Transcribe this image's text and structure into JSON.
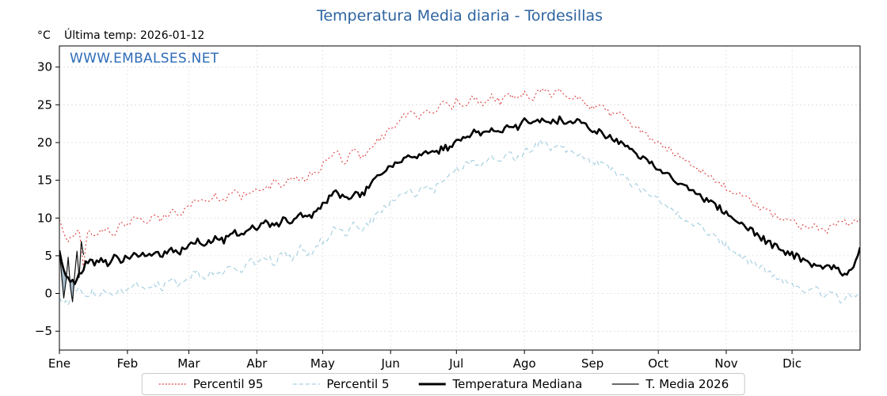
{
  "header": {
    "title": "Temperatura Media diaria - Tordesillas",
    "unit_label": "°C",
    "last_temp_label": "Última temp: 2026-01-12",
    "watermark": "WWW.EMBALSES.NET"
  },
  "colors": {
    "title": "#2e64a0",
    "watermark": "#2e6cb8",
    "percentil95": "#dd3c3c",
    "percentil5": "#a9d1e2",
    "mediana": "#000000",
    "media2026": "#111111",
    "fill": "#628aa8"
  },
  "chart_data": {
    "type": "line",
    "title": "Temperatura Media diaria - Tordesillas",
    "ylabel": "°C",
    "grid": true,
    "x_axis": {
      "months": [
        "Ene",
        "Feb",
        "Mar",
        "Abr",
        "May",
        "Jun",
        "Jul",
        "Ago",
        "Sep",
        "Oct",
        "Nov",
        "Dic"
      ],
      "month_start_days": [
        0,
        31,
        59,
        90,
        120,
        151,
        181,
        212,
        243,
        273,
        304,
        334
      ],
      "total_days": 365
    },
    "y_axis": {
      "ticks": [
        -5,
        0,
        5,
        10,
        15,
        20,
        25,
        30
      ],
      "lim": [
        -7.5,
        32.8
      ],
      "unit": "°C"
    },
    "legend": {
      "position": "bottom",
      "entries": [
        "Percentil 95",
        "Percentil 5",
        "Temperatura Mediana",
        "T. Media 2026"
      ]
    },
    "fill_between": {
      "upper": "Temperatura Mediana",
      "lower": "T. Media 2026",
      "color": "#628aa8",
      "opacity": 0.55,
      "range_days": [
        0,
        11
      ]
    },
    "series": [
      {
        "name": "Percentil 95",
        "color": "#dd3c3c",
        "style": "dotted",
        "width": 1.1,
        "noise": 0.45,
        "anchors": [
          [
            0,
            9.5
          ],
          [
            3,
            7.0
          ],
          [
            6,
            7.8
          ],
          [
            9,
            8.2
          ],
          [
            11,
            3.6
          ],
          [
            13,
            8.3
          ],
          [
            17,
            7.8
          ],
          [
            21,
            8.6
          ],
          [
            25,
            7.9
          ],
          [
            28,
            9.2
          ],
          [
            31,
            8.8
          ],
          [
            35,
            10.3
          ],
          [
            39,
            9.6
          ],
          [
            43,
            10.2
          ],
          [
            47,
            9.8
          ],
          [
            51,
            11.0
          ],
          [
            55,
            10.4
          ],
          [
            59,
            11.6
          ],
          [
            63,
            12.6
          ],
          [
            67,
            12.0
          ],
          [
            71,
            13.0
          ],
          [
            75,
            12.4
          ],
          [
            79,
            13.6
          ],
          [
            83,
            12.8
          ],
          [
            87,
            13.6
          ],
          [
            90,
            14.2
          ],
          [
            94,
            13.6
          ],
          [
            98,
            14.8
          ],
          [
            102,
            14.2
          ],
          [
            106,
            15.4
          ],
          [
            110,
            14.8
          ],
          [
            114,
            15.6
          ],
          [
            118,
            16.2
          ],
          [
            122,
            17.6
          ],
          [
            126,
            18.8
          ],
          [
            130,
            17.4
          ],
          [
            134,
            19.0
          ],
          [
            138,
            18.0
          ],
          [
            142,
            19.6
          ],
          [
            146,
            20.4
          ],
          [
            151,
            21.8
          ],
          [
            155,
            22.8
          ],
          [
            159,
            24.0
          ],
          [
            163,
            23.2
          ],
          [
            167,
            24.6
          ],
          [
            171,
            24.0
          ],
          [
            175,
            25.2
          ],
          [
            179,
            24.6
          ],
          [
            181,
            25.6
          ],
          [
            185,
            25.0
          ],
          [
            189,
            26.0
          ],
          [
            193,
            25.2
          ],
          [
            197,
            26.2
          ],
          [
            201,
            25.4
          ],
          [
            205,
            26.4
          ],
          [
            209,
            25.6
          ],
          [
            212,
            26.6
          ],
          [
            216,
            26.0
          ],
          [
            220,
            27.4
          ],
          [
            224,
            26.4
          ],
          [
            228,
            26.8
          ],
          [
            232,
            25.8
          ],
          [
            236,
            26.0
          ],
          [
            240,
            25.2
          ],
          [
            243,
            24.6
          ],
          [
            247,
            25.0
          ],
          [
            251,
            23.8
          ],
          [
            255,
            24.2
          ],
          [
            259,
            22.8
          ],
          [
            263,
            22.0
          ],
          [
            267,
            21.2
          ],
          [
            273,
            19.8
          ],
          [
            278,
            19.0
          ],
          [
            283,
            18.2
          ],
          [
            288,
            17.2
          ],
          [
            293,
            16.2
          ],
          [
            298,
            15.2
          ],
          [
            304,
            14.0
          ],
          [
            309,
            13.2
          ],
          [
            314,
            12.4
          ],
          [
            319,
            11.4
          ],
          [
            324,
            10.6
          ],
          [
            329,
            10.0
          ],
          [
            334,
            9.6
          ],
          [
            339,
            8.8
          ],
          [
            344,
            9.2
          ],
          [
            349,
            8.2
          ],
          [
            353,
            9.0
          ],
          [
            357,
            9.6
          ],
          [
            361,
            9.0
          ],
          [
            365,
            9.8
          ]
        ]
      },
      {
        "name": "Percentil 5",
        "color": "#a9d1e2",
        "style": "dashed",
        "width": 1.2,
        "noise": 0.5,
        "anchors": [
          [
            0,
            -0.4
          ],
          [
            3,
            -1.3
          ],
          [
            6,
            -0.6
          ],
          [
            9,
            0.6
          ],
          [
            12,
            -0.8
          ],
          [
            15,
            0.2
          ],
          [
            18,
            -0.6
          ],
          [
            21,
            0.4
          ],
          [
            24,
            -0.4
          ],
          [
            27,
            0.6
          ],
          [
            31,
            0.2
          ],
          [
            35,
            1.2
          ],
          [
            39,
            0.4
          ],
          [
            43,
            1.4
          ],
          [
            47,
            0.8
          ],
          [
            51,
            1.8
          ],
          [
            55,
            1.2
          ],
          [
            59,
            2.2
          ],
          [
            63,
            2.8
          ],
          [
            67,
            2.0
          ],
          [
            71,
            3.2
          ],
          [
            75,
            2.6
          ],
          [
            79,
            3.8
          ],
          [
            83,
            3.0
          ],
          [
            87,
            4.2
          ],
          [
            90,
            4.0
          ],
          [
            94,
            4.8
          ],
          [
            98,
            4.0
          ],
          [
            102,
            5.4
          ],
          [
            106,
            4.8
          ],
          [
            110,
            6.0
          ],
          [
            114,
            5.2
          ],
          [
            118,
            6.6
          ],
          [
            122,
            7.4
          ],
          [
            126,
            8.8
          ],
          [
            130,
            7.8
          ],
          [
            134,
            9.0
          ],
          [
            138,
            8.2
          ],
          [
            142,
            9.6
          ],
          [
            146,
            10.6
          ],
          [
            151,
            12.2
          ],
          [
            155,
            13.0
          ],
          [
            159,
            13.8
          ],
          [
            163,
            13.0
          ],
          [
            167,
            14.4
          ],
          [
            171,
            13.8
          ],
          [
            175,
            15.2
          ],
          [
            179,
            15.8
          ],
          [
            181,
            16.4
          ],
          [
            185,
            17.0
          ],
          [
            189,
            17.6
          ],
          [
            193,
            17.0
          ],
          [
            197,
            18.0
          ],
          [
            201,
            17.4
          ],
          [
            205,
            18.4
          ],
          [
            209,
            17.8
          ],
          [
            212,
            18.8
          ],
          [
            216,
            19.2
          ],
          [
            220,
            20.2
          ],
          [
            224,
            19.2
          ],
          [
            228,
            19.6
          ],
          [
            232,
            18.8
          ],
          [
            236,
            18.4
          ],
          [
            240,
            17.8
          ],
          [
            243,
            17.6
          ],
          [
            247,
            17.0
          ],
          [
            251,
            16.4
          ],
          [
            255,
            15.8
          ],
          [
            259,
            15.0
          ],
          [
            263,
            14.2
          ],
          [
            267,
            13.4
          ],
          [
            273,
            12.4
          ],
          [
            278,
            11.4
          ],
          [
            283,
            10.4
          ],
          [
            288,
            9.6
          ],
          [
            293,
            8.6
          ],
          [
            298,
            7.6
          ],
          [
            304,
            6.4
          ],
          [
            309,
            5.4
          ],
          [
            314,
            4.4
          ],
          [
            319,
            3.6
          ],
          [
            324,
            2.6
          ],
          [
            329,
            1.8
          ],
          [
            334,
            1.2
          ],
          [
            339,
            0.4
          ],
          [
            344,
            0.8
          ],
          [
            349,
            -0.6
          ],
          [
            353,
            0.2
          ],
          [
            357,
            -1.2
          ],
          [
            361,
            -0.2
          ],
          [
            365,
            -0.6
          ]
        ]
      },
      {
        "name": "Temperatura Mediana",
        "color": "#000000",
        "style": "solid",
        "width": 2.6,
        "noise": 0.45,
        "anchors": [
          [
            0,
            5.8
          ],
          [
            2,
            3.0
          ],
          [
            4,
            2.0
          ],
          [
            7,
            1.4
          ],
          [
            10,
            3.0
          ],
          [
            13,
            4.4
          ],
          [
            16,
            3.8
          ],
          [
            19,
            4.6
          ],
          [
            22,
            4.0
          ],
          [
            25,
            4.8
          ],
          [
            28,
            4.2
          ],
          [
            31,
            4.8
          ],
          [
            35,
            5.4
          ],
          [
            39,
            4.8
          ],
          [
            43,
            5.6
          ],
          [
            47,
            5.0
          ],
          [
            51,
            6.0
          ],
          [
            55,
            5.6
          ],
          [
            59,
            6.4
          ],
          [
            63,
            7.0
          ],
          [
            67,
            6.4
          ],
          [
            71,
            7.4
          ],
          [
            75,
            7.0
          ],
          [
            79,
            8.2
          ],
          [
            83,
            7.6
          ],
          [
            87,
            8.6
          ],
          [
            90,
            8.8
          ],
          [
            94,
            9.4
          ],
          [
            98,
            8.8
          ],
          [
            102,
            9.8
          ],
          [
            106,
            9.4
          ],
          [
            110,
            10.6
          ],
          [
            114,
            10.0
          ],
          [
            118,
            11.2
          ],
          [
            122,
            12.4
          ],
          [
            126,
            13.6
          ],
          [
            130,
            12.6
          ],
          [
            134,
            13.2
          ],
          [
            138,
            13.0
          ],
          [
            142,
            14.4
          ],
          [
            146,
            15.6
          ],
          [
            151,
            16.8
          ],
          [
            155,
            17.6
          ],
          [
            159,
            18.6
          ],
          [
            163,
            17.8
          ],
          [
            167,
            18.8
          ],
          [
            171,
            18.4
          ],
          [
            175,
            19.4
          ],
          [
            179,
            19.0
          ],
          [
            181,
            20.2
          ],
          [
            185,
            20.8
          ],
          [
            189,
            21.4
          ],
          [
            193,
            21.0
          ],
          [
            197,
            21.8
          ],
          [
            201,
            21.4
          ],
          [
            205,
            22.2
          ],
          [
            209,
            21.8
          ],
          [
            212,
            22.8
          ],
          [
            216,
            22.4
          ],
          [
            220,
            23.2
          ],
          [
            224,
            22.6
          ],
          [
            228,
            23.0
          ],
          [
            232,
            22.6
          ],
          [
            236,
            22.8
          ],
          [
            240,
            22.2
          ],
          [
            243,
            21.8
          ],
          [
            247,
            21.4
          ],
          [
            251,
            20.6
          ],
          [
            255,
            20.0
          ],
          [
            259,
            19.2
          ],
          [
            263,
            18.4
          ],
          [
            267,
            17.6
          ],
          [
            273,
            16.6
          ],
          [
            278,
            15.6
          ],
          [
            283,
            14.6
          ],
          [
            288,
            13.6
          ],
          [
            293,
            12.6
          ],
          [
            298,
            11.8
          ],
          [
            304,
            10.8
          ],
          [
            309,
            9.8
          ],
          [
            314,
            8.8
          ],
          [
            319,
            7.6
          ],
          [
            324,
            6.6
          ],
          [
            329,
            5.8
          ],
          [
            334,
            5.2
          ],
          [
            339,
            4.4
          ],
          [
            344,
            3.8
          ],
          [
            349,
            3.2
          ],
          [
            353,
            3.6
          ],
          [
            357,
            2.6
          ],
          [
            361,
            3.0
          ],
          [
            365,
            6.2
          ]
        ]
      },
      {
        "name": "T. Media 2026",
        "color": "#111111",
        "style": "solid",
        "width": 1.2,
        "noise": 0,
        "start_day": 0,
        "daily": [
          5.8,
          2.4,
          -0.6,
          1.6,
          4.8,
          0.9,
          -1.1,
          2.6,
          5.6,
          2.1,
          6.9,
          5.1
        ]
      }
    ]
  }
}
